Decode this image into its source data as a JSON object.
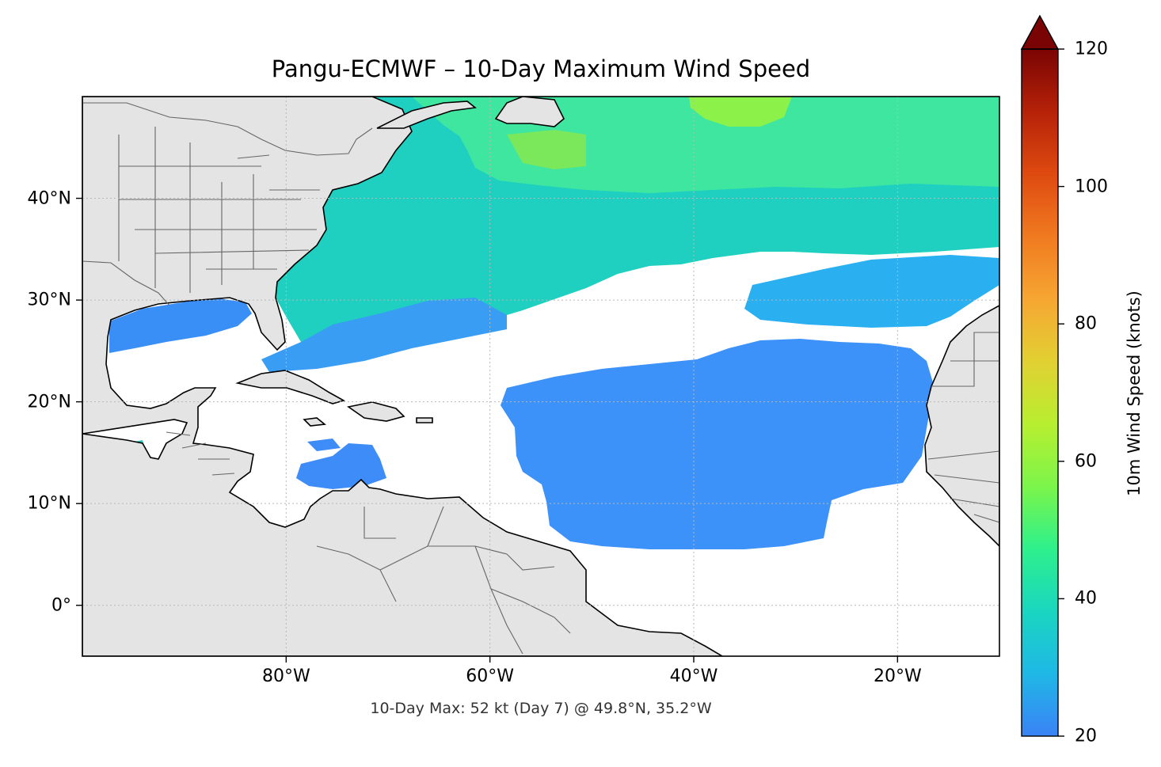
{
  "title": "Pangu-ECMWF – 10-Day Maximum Wind Speed",
  "subtitle": "10-Day Max: 52 kt (Day 7) @ 49.8°N, 35.2°W",
  "map": {
    "lon_range": [
      -100,
      -10
    ],
    "lat_range": [
      -5,
      50
    ],
    "x_ticks": [
      {
        "value": -80,
        "label": "80°W"
      },
      {
        "value": -60,
        "label": "60°W"
      },
      {
        "value": -40,
        "label": "40°W"
      },
      {
        "value": -20,
        "label": "20°W"
      }
    ],
    "y_ticks": [
      {
        "value": 40,
        "label": "40°N"
      },
      {
        "value": 30,
        "label": "30°N"
      },
      {
        "value": 20,
        "label": "20°N"
      },
      {
        "value": 10,
        "label": "10°N"
      },
      {
        "value": 0,
        "label": "0°"
      }
    ],
    "gridlines": true,
    "land_color": "#e4e4e4",
    "coast_color": "#000000",
    "border_color": "#666666"
  },
  "colorbar": {
    "label": "10m Wind Speed (knots)",
    "range": [
      20,
      120
    ],
    "extend": "max",
    "ticks": [
      {
        "value": 120,
        "label": "120"
      },
      {
        "value": 100,
        "label": "100"
      },
      {
        "value": 80,
        "label": "80"
      },
      {
        "value": 60,
        "label": "60"
      },
      {
        "value": 40,
        "label": "40"
      },
      {
        "value": 20,
        "label": "20"
      }
    ],
    "colors": [
      "#3b82f6",
      "#1fb8e6",
      "#1ad6c0",
      "#2ef08c",
      "#7cf54a",
      "#b8ee30",
      "#e2d032",
      "#f6a632",
      "#f07a20",
      "#de4a10",
      "#b52208",
      "#7a0404"
    ]
  },
  "maximum": {
    "speed_kt": 52,
    "day": 7,
    "lat": 49.8,
    "lon": -35.2
  }
}
